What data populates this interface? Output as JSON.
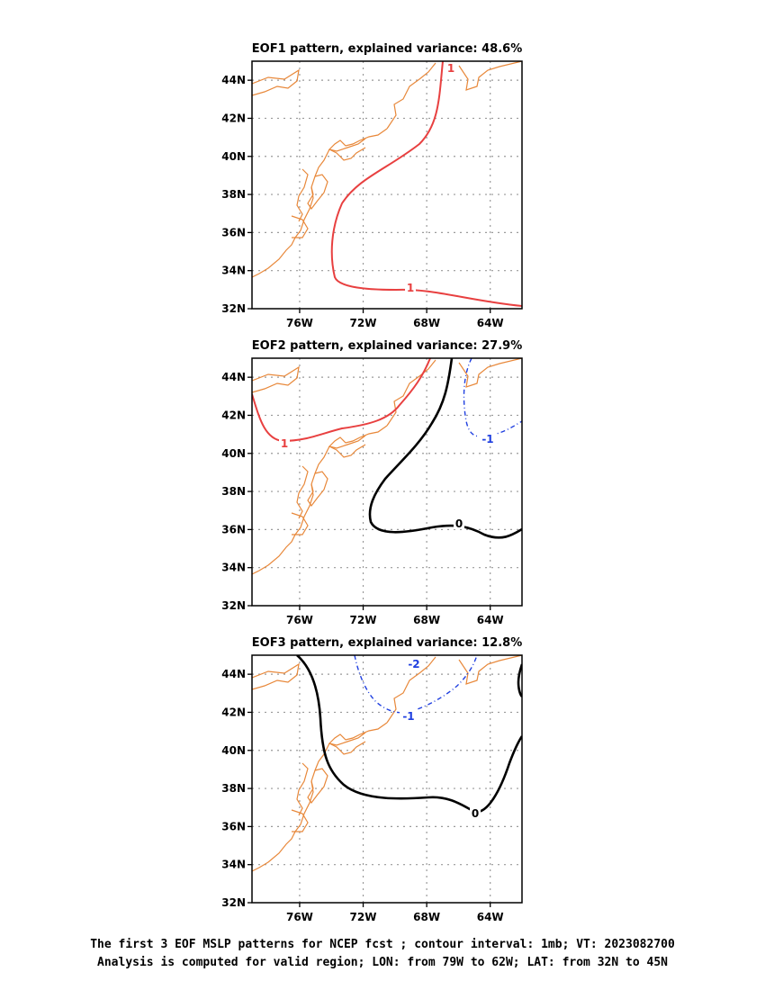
{
  "panels": [
    {
      "title": "EOF1 pattern, explained variance: 48.6%",
      "contour_labels": [
        "1",
        "1"
      ]
    },
    {
      "title": "EOF2 pattern, explained variance: 27.9%",
      "contour_labels": [
        "1",
        "0",
        "-1"
      ]
    },
    {
      "title": "EOF3 pattern, explained variance: 12.8%",
      "contour_labels": [
        "-2",
        "-1",
        "0"
      ]
    }
  ],
  "axes": {
    "lon_ticks": [
      "76W",
      "72W",
      "68W",
      "64W"
    ],
    "lat_ticks": [
      "44N",
      "42N",
      "40N",
      "38N",
      "36N",
      "34N",
      "32N"
    ]
  },
  "colors": {
    "coastline": "#e8883a",
    "positive_contour": "#e84040",
    "zero_contour": "#000000",
    "negative_contour": "#1f3fe0",
    "grid": "#9a9a9a"
  },
  "footer": {
    "line1": "The first 3 EOF MSLP patterns for NCEP fcst ; contour interval: 1mb; VT: 2023082700",
    "line2": "Analysis is computed for valid region; LON: from 79W to 62W; LAT: from 32N to 45N"
  }
}
